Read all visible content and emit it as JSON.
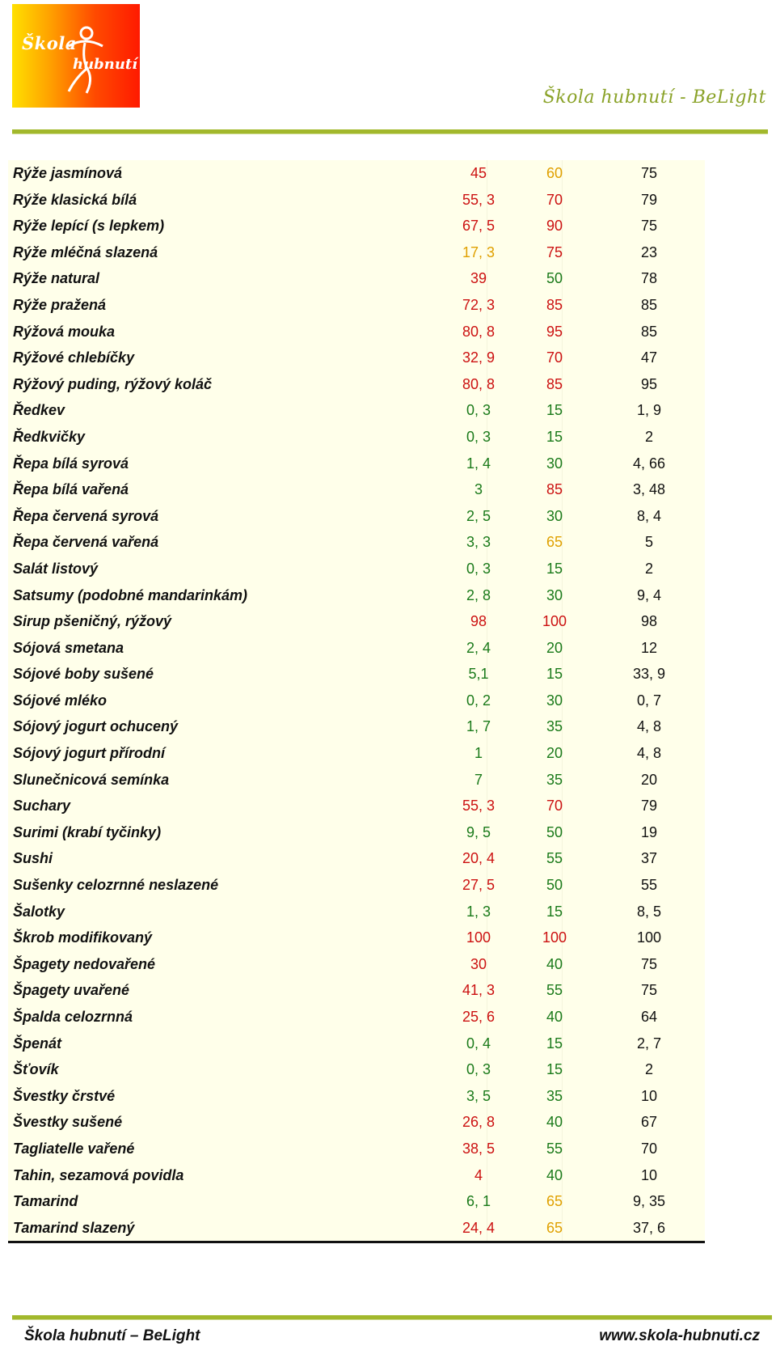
{
  "header": {
    "logo_line1": "Škola",
    "logo_line2": "hubnutí",
    "brand": "Škola hubnutí - BeLight"
  },
  "colors": {
    "red": "#cc1111",
    "orange": "#e0a000",
    "green": "#1a7a1a",
    "black": "#111111",
    "table_bg": "#ffffea",
    "rule": "#a2b82c"
  },
  "rows": [
    {
      "name": "Rýže jasmínová",
      "v1": "45",
      "c1": "red",
      "v2": "60",
      "c2": "orange",
      "v3": "75"
    },
    {
      "name": "Rýže klasická bílá",
      "v1": "55, 3",
      "c1": "red",
      "v2": "70",
      "c2": "red",
      "v3": "79"
    },
    {
      "name": "Rýže lepící (s lepkem)",
      "v1": "67, 5",
      "c1": "red",
      "v2": "90",
      "c2": "red",
      "v3": "75"
    },
    {
      "name": "Rýže mléčná slazená",
      "v1": "17, 3",
      "c1": "orange",
      "v2": "75",
      "c2": "red",
      "v3": "23"
    },
    {
      "name": "Rýže natural",
      "v1": "39",
      "c1": "red",
      "v2": "50",
      "c2": "green",
      "v3": "78"
    },
    {
      "name": "Rýže pražená",
      "v1": "72, 3",
      "c1": "red",
      "v2": "85",
      "c2": "red",
      "v3": "85"
    },
    {
      "name": "Rýžová mouka",
      "v1": "80, 8",
      "c1": "red",
      "v2": "95",
      "c2": "red",
      "v3": "85"
    },
    {
      "name": "Rýžové chlebíčky",
      "v1": "32, 9",
      "c1": "red",
      "v2": "70",
      "c2": "red",
      "v3": "47"
    },
    {
      "name": "Rýžový puding, rýžový koláč",
      "v1": "80, 8",
      "c1": "red",
      "v2": "85",
      "c2": "red",
      "v3": "95"
    },
    {
      "name": "Ředkev",
      "v1": "0, 3",
      "c1": "green",
      "v2": "15",
      "c2": "green",
      "v3": "1, 9"
    },
    {
      "name": "Ředkvičky",
      "v1": "0, 3",
      "c1": "green",
      "v2": "15",
      "c2": "green",
      "v3": "2"
    },
    {
      "name": "Řepa bílá syrová",
      "v1": "1, 4",
      "c1": "green",
      "v2": "30",
      "c2": "green",
      "v3": "4, 66"
    },
    {
      "name": "Řepa bílá vařená",
      "v1": "3",
      "c1": "green",
      "v2": "85",
      "c2": "red",
      "v3": "3, 48"
    },
    {
      "name": "Řepa červená syrová",
      "v1": "2, 5",
      "c1": "green",
      "v2": "30",
      "c2": "green",
      "v3": "8, 4"
    },
    {
      "name": "Řepa červená vařená",
      "v1": "3, 3",
      "c1": "green",
      "v2": "65",
      "c2": "orange",
      "v3": "5"
    },
    {
      "name": "Salát listový",
      "v1": "0, 3",
      "c1": "green",
      "v2": "15",
      "c2": "green",
      "v3": "2"
    },
    {
      "name": "Satsumy (podobné mandarinkám)",
      "v1": "2, 8",
      "c1": "green",
      "v2": "30",
      "c2": "green",
      "v3": "9, 4"
    },
    {
      "name": "Sirup pšeničný, rýžový",
      "v1": "98",
      "c1": "red",
      "v2": "100",
      "c2": "red",
      "v3": "98"
    },
    {
      "name": "Sójová smetana",
      "v1": "2, 4",
      "c1": "green",
      "v2": "20",
      "c2": "green",
      "v3": "12"
    },
    {
      "name": "Sójové boby sušené",
      "v1": "5,1",
      "c1": "green",
      "v2": "15",
      "c2": "green",
      "v3": "33, 9"
    },
    {
      "name": "Sójové mléko",
      "v1": "0, 2",
      "c1": "green",
      "v2": "30",
      "c2": "green",
      "v3": "0, 7"
    },
    {
      "name": "Sójový jogurt ochucený",
      "v1": "1, 7",
      "c1": "green",
      "v2": "35",
      "c2": "green",
      "v3": "4, 8"
    },
    {
      "name": "Sójový jogurt přírodní",
      "v1": "1",
      "c1": "green",
      "v2": "20",
      "c2": "green",
      "v3": "4, 8"
    },
    {
      "name": "Slunečnicová semínka",
      "v1": "7",
      "c1": "green",
      "v2": "35",
      "c2": "green",
      "v3": "20"
    },
    {
      "name": "Suchary",
      "v1": "55, 3",
      "c1": "red",
      "v2": "70",
      "c2": "red",
      "v3": "79"
    },
    {
      "name": "Surimi (krabí tyčinky)",
      "v1": "9, 5",
      "c1": "green",
      "v2": "50",
      "c2": "green",
      "v3": "19"
    },
    {
      "name": "Sushi",
      "v1": "20, 4",
      "c1": "red",
      "v2": "55",
      "c2": "green",
      "v3": "37"
    },
    {
      "name": "Sušenky celozrnné neslazené",
      "v1": "27, 5",
      "c1": "red",
      "v2": "50",
      "c2": "green",
      "v3": "55"
    },
    {
      "name": "Šalotky",
      "v1": "1, 3",
      "c1": "green",
      "v2": "15",
      "c2": "green",
      "v3": "8, 5"
    },
    {
      "name": "Škrob modifikovaný",
      "v1": "100",
      "c1": "red",
      "v2": "100",
      "c2": "red",
      "v3": "100"
    },
    {
      "name": "Špagety nedovařené",
      "v1": "30",
      "c1": "red",
      "v2": "40",
      "c2": "green",
      "v3": "75"
    },
    {
      "name": "Špagety uvařené",
      "v1": "41, 3",
      "c1": "red",
      "v2": "55",
      "c2": "green",
      "v3": "75"
    },
    {
      "name": "Špalda celozrnná",
      "v1": "25, 6",
      "c1": "red",
      "v2": "40",
      "c2": "green",
      "v3": "64"
    },
    {
      "name": "Špenát",
      "v1": "0, 4",
      "c1": "green",
      "v2": "15",
      "c2": "green",
      "v3": "2, 7"
    },
    {
      "name": "Šťovík",
      "v1": "0, 3",
      "c1": "green",
      "v2": "15",
      "c2": "green",
      "v3": "2"
    },
    {
      "name": "Švestky črstvé",
      "v1": "3, 5",
      "c1": "green",
      "v2": "35",
      "c2": "green",
      "v3": "10"
    },
    {
      "name": "Švestky sušené",
      "v1": "26, 8",
      "c1": "red",
      "v2": "40",
      "c2": "green",
      "v3": "67"
    },
    {
      "name": "Tagliatelle vařené",
      "v1": "38, 5",
      "c1": "red",
      "v2": "55",
      "c2": "green",
      "v3": "70"
    },
    {
      "name": "Tahin, sezamová povidla",
      "v1": "4",
      "c1": "red",
      "v2": "40",
      "c2": "green",
      "v3": "10"
    },
    {
      "name": "Tamarind",
      "v1": "6, 1",
      "c1": "green",
      "v2": "65",
      "c2": "orange",
      "v3": "9, 35"
    },
    {
      "name": "Tamarind slazený",
      "v1": "24, 4",
      "c1": "red",
      "v2": "65",
      "c2": "orange",
      "v3": "37, 6"
    }
  ],
  "footer": {
    "left": "Škola hubnutí – BeLight",
    "right": "www.skola-hubnuti.cz"
  }
}
